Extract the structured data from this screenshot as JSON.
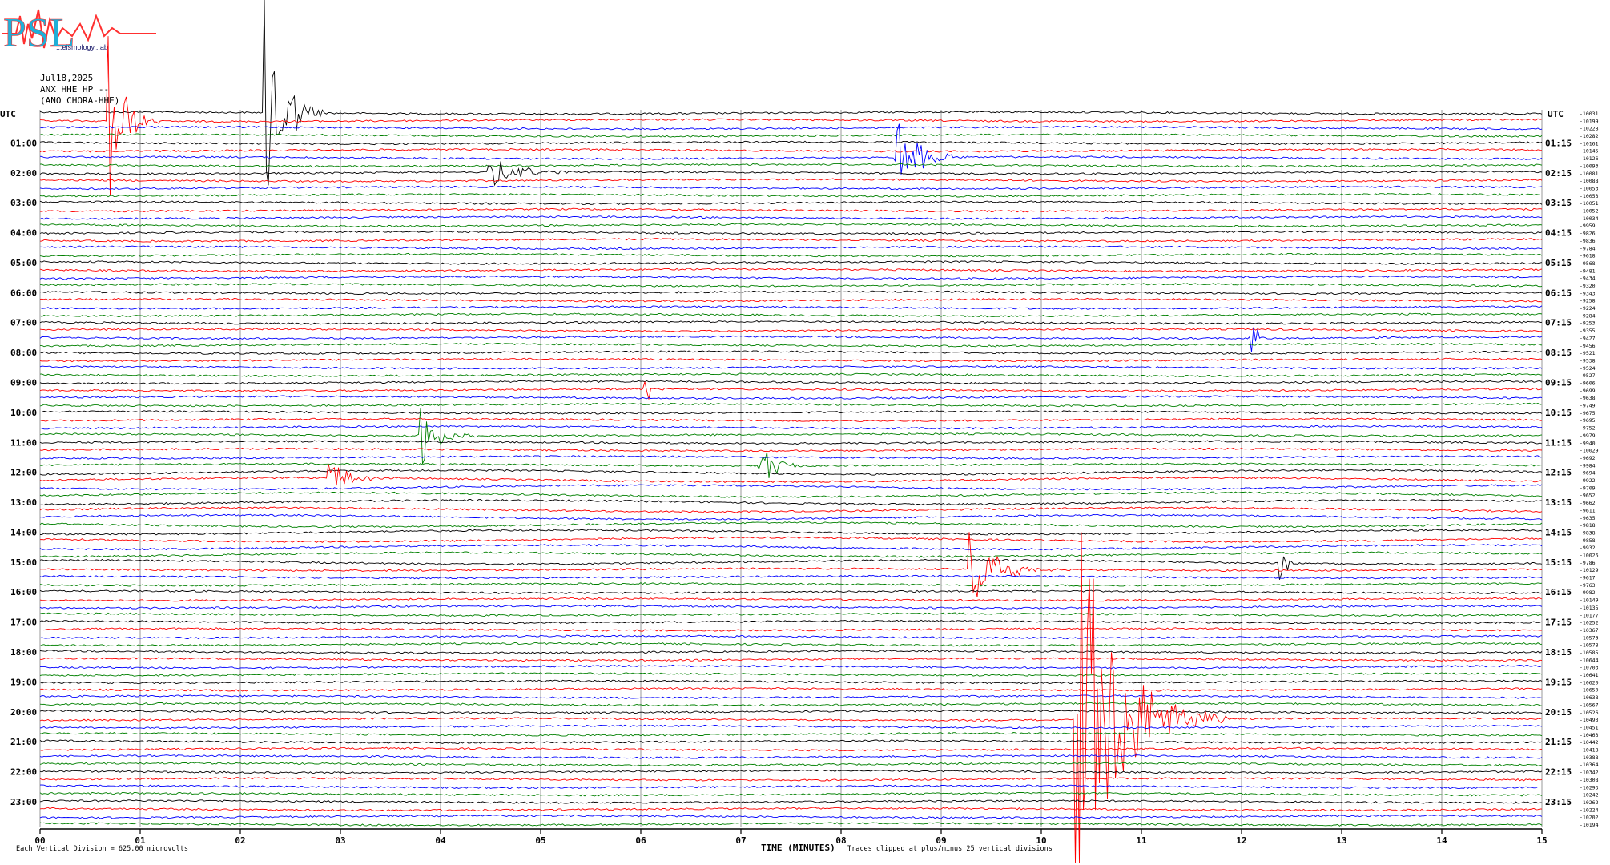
{
  "logo": {
    "text": "PSL",
    "subtext": "...eismology...ab"
  },
  "header": {
    "date": "Jul18,2025",
    "channel": "ANX HHE HP --",
    "station": "(ANO CHORA-HHE)"
  },
  "axis": {
    "left_label": "UTC",
    "right_label": "UTC",
    "xlabel": "TIME (MINUTES)",
    "xticks": [
      "00",
      "01",
      "02",
      "03",
      "04",
      "05",
      "06",
      "07",
      "08",
      "09",
      "10",
      "11",
      "12",
      "13",
      "14",
      "15"
    ]
  },
  "footer": {
    "scale": "Each Vertical Division =  625.00 microvolts",
    "clip_note": "Traces clipped at plus/minus 25 vertical divisions"
  },
  "chart_data": {
    "type": "line",
    "title": "",
    "xlabel": "TIME (MINUTES)",
    "ylabel": "UTC",
    "xlim": [
      0,
      15
    ],
    "rows_per_hour": 4,
    "minutes_per_row": 15,
    "trace_colors": [
      "#000000",
      "#ff0000",
      "#0000ff",
      "#008000"
    ],
    "left_hour_labels": [
      "01:00",
      "02:00",
      "03:00",
      "04:00",
      "05:00",
      "06:00",
      "07:00",
      "08:00",
      "09:00",
      "10:00",
      "11:00",
      "12:00",
      "13:00",
      "14:00",
      "15:00",
      "16:00",
      "17:00",
      "18:00",
      "19:00",
      "20:00",
      "21:00",
      "22:00",
      "23:00"
    ],
    "right_hour_labels": [
      "01:15",
      "02:15",
      "03:15",
      "04:15",
      "05:15",
      "06:15",
      "07:15",
      "08:15",
      "09:15",
      "10:15",
      "11:15",
      "12:15",
      "13:15",
      "14:15",
      "15:15",
      "16:15",
      "17:15",
      "18:15",
      "19:15",
      "20:15",
      "21:15",
      "22:15",
      "23:15"
    ],
    "row_offsets": [
      "-10031",
      "-10199",
      "-10228",
      "-10282",
      "-10161",
      "-10145",
      "-10126",
      "-10093",
      "-10081",
      "-10088",
      "-10053",
      "-10053",
      "-10051",
      "-10052",
      "-10034",
      "-9959",
      "-9826",
      "-9836",
      "-9784",
      "-9618",
      "-9568",
      "-9481",
      "-9434",
      "-9320",
      "-9343",
      "-9258",
      "-9224",
      "-9284",
      "-9253",
      "-9355",
      "-9427",
      "-9456",
      "-9521",
      "-9538",
      "-9524",
      "-9527",
      "-9606",
      "-9699",
      "-9638",
      "-9749",
      "-9675",
      "-9695",
      "-9752",
      "-9979",
      "-9940",
      "-10029",
      "-9692",
      "-9984",
      "-9694",
      "-9922",
      "-9709",
      "-9652",
      "-9662",
      "-9611",
      "-9635",
      "-9818",
      "-9838",
      "-9858",
      "-9932",
      "-10026",
      "-9786",
      "-10129",
      "-9617",
      "-9763",
      "-9982",
      "-10149",
      "-10135",
      "-10177",
      "-10252",
      "-10367",
      "-10573",
      "-10578",
      "-10585",
      "-10644",
      "-10703",
      "-10641",
      "-10620",
      "-10650",
      "-10638",
      "-10567",
      "-10526",
      "-10493",
      "-10451",
      "-10463",
      "-10442",
      "-10418",
      "-10388",
      "-10364",
      "-10342",
      "-10308",
      "-10293",
      "-10242",
      "-10262",
      "-10224",
      "-10202",
      "-10194"
    ],
    "events": [
      {
        "row": 1,
        "minute": 0.7,
        "amplitude": 25,
        "duration": 0.5
      },
      {
        "row": 0,
        "minute": 2.25,
        "amplitude": 40,
        "duration": 0.6
      },
      {
        "row": 6,
        "minute": 8.55,
        "amplitude": 14,
        "duration": 0.7
      },
      {
        "row": 8,
        "minute": 4.5,
        "amplitude": 4,
        "duration": 1.2
      },
      {
        "row": 43,
        "minute": 3.8,
        "amplitude": 9,
        "duration": 0.6
      },
      {
        "row": 47,
        "minute": 7.2,
        "amplitude": 6,
        "duration": 0.6
      },
      {
        "row": 49,
        "minute": 2.9,
        "amplitude": 5,
        "duration": 0.7
      },
      {
        "row": 61,
        "minute": 9.3,
        "amplitude": 11,
        "duration": 1.0
      },
      {
        "row": 60,
        "minute": 12.4,
        "amplitude": 7,
        "duration": 0.2
      },
      {
        "row": 81,
        "minute": 10.35,
        "amplitude": 60,
        "duration": 1.5
      },
      {
        "row": 37,
        "minute": 6.05,
        "amplitude": 5,
        "duration": 0.3
      },
      {
        "row": 30,
        "minute": 12.1,
        "amplitude": 5,
        "duration": 0.3
      }
    ]
  }
}
